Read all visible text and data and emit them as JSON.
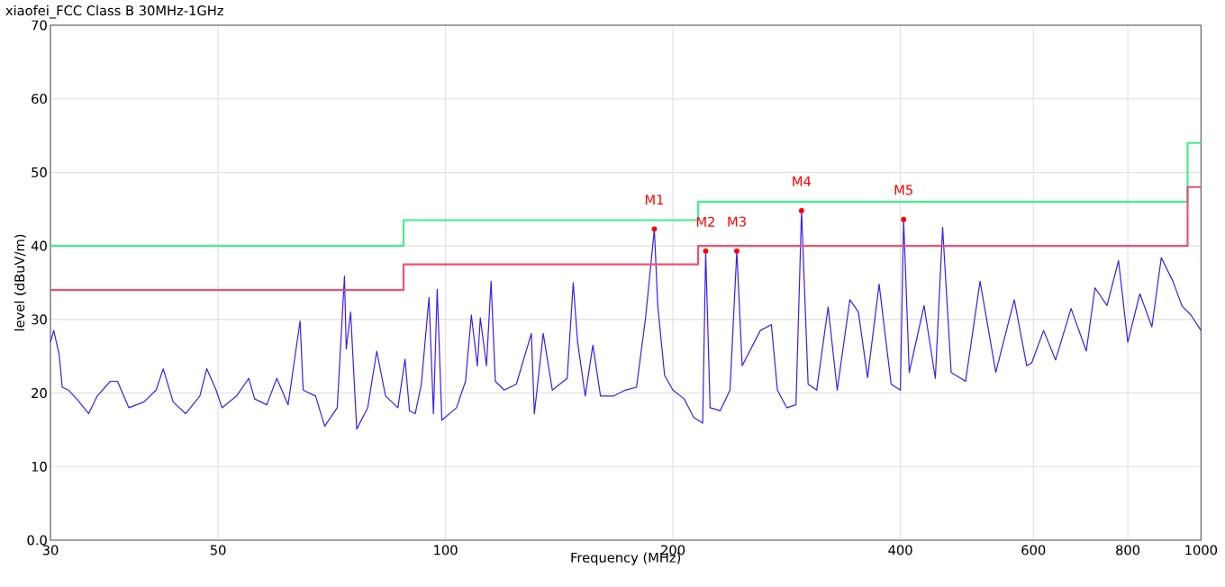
{
  "chart_data": {
    "type": "line",
    "title": "xiaofei_FCC Class B 30MHz-1GHz",
    "xlabel": "Frequency (MHz)",
    "ylabel": "level (dBuV/m)",
    "log": "x",
    "grid": true,
    "marker": "none",
    "line_style": "solid",
    "xlim": [
      30,
      1000
    ],
    "xticks": [
      30,
      50,
      100,
      200,
      400,
      600,
      800,
      1000
    ],
    "ylim": [
      0,
      70
    ],
    "yticks": [
      {
        "value": 0,
        "label": "0.0"
      },
      10,
      20,
      30,
      40,
      50,
      60,
      70
    ],
    "series": [
      {
        "color": "#3c1cf5",
        "x": [
          30,
          30.3,
          30.8,
          31.1,
          31.7,
          32.5,
          33.7,
          34.6,
          36,
          36.8,
          38.1,
          39.9,
          41.4,
          42.3,
          43.6,
          45.3,
          47.3,
          48.3,
          49.7,
          50.6,
          52.9,
          54.9,
          55.9,
          58,
          59.8,
          61.9,
          64.2,
          64.8,
          67.3,
          69.2,
          71.9,
          73.5,
          73.9,
          74.9,
          76.3,
          78.9,
          81.1,
          83.3,
          86.5,
          88.4,
          89.6,
          91.2,
          92.9,
          95.1,
          96.4,
          97.5,
          98.9,
          103.4,
          106.3,
          108.2,
          110.2,
          111.2,
          113.3,
          114.9,
          116.4,
          119.6,
          124.1,
          129.9,
          131.1,
          134.7,
          138.5,
          144.9,
          147.6,
          149.6,
          153.1,
          156.7,
          160.4,
          167,
          173,
          179,
          184,
          189,
          191,
          195,
          200,
          207,
          213,
          219,
          221,
          224,
          231,
          238,
          243,
          247,
          261,
          270,
          275,
          283,
          291,
          296,
          302,
          310,
          321,
          330,
          343,
          352,
          362,
          375,
          389,
          400,
          404,
          411,
          430,
          445,
          455,
          467,
          488,
          510,
          535,
          566,
          588,
          597,
          619,
          642,
          673,
          705,
          724,
          751,
          778,
          800,
          830,
          861,
          886,
          918,
          944,
          970,
          1000
        ],
        "values": [
          26.9,
          28.5,
          25.3,
          20.8,
          20.4,
          19.2,
          17.2,
          19.6,
          21.6,
          21.6,
          18,
          18.8,
          20.4,
          23.3,
          18.8,
          17.2,
          19.6,
          23.3,
          20.4,
          18,
          19.6,
          22,
          19.2,
          18.4,
          22,
          18.4,
          29.8,
          20.4,
          19.6,
          15.5,
          18,
          35.9,
          26,
          31,
          15.1,
          18,
          25.7,
          19.6,
          18,
          24.6,
          17.6,
          17.2,
          21.2,
          33,
          17.2,
          34.1,
          16.3,
          18,
          21.6,
          30.6,
          23.7,
          30.2,
          23.7,
          35.2,
          21.6,
          20.4,
          21.2,
          28.1,
          17.2,
          28.1,
          20.4,
          22,
          35,
          26.9,
          19.6,
          26.5,
          19.6,
          19.6,
          20.4,
          20.8,
          30.2,
          42.3,
          31.8,
          22.4,
          20.4,
          19.2,
          16.7,
          15.9,
          39.3,
          18,
          17.6,
          20.4,
          39.3,
          23.7,
          28.5,
          29.3,
          20.4,
          18,
          18.4,
          44.8,
          21.2,
          20.4,
          31.7,
          20.4,
          32.7,
          31,
          22.1,
          34.8,
          21.2,
          20.4,
          43.6,
          22.8,
          31.9,
          22,
          42.5,
          22.8,
          21.6,
          35.2,
          22.8,
          32.7,
          23.7,
          24.1,
          28.5,
          24.5,
          31.5,
          25.7,
          34.3,
          31.9,
          38,
          26.9,
          33.5,
          29,
          38.4,
          35.2,
          31.8,
          30.6,
          28.5
        ]
      },
      {
        "color": "#3cf08c",
        "x": [
          30,
          88,
          88,
          216,
          216,
          960,
          960,
          1000
        ],
        "values": [
          40,
          40,
          43.5,
          43.5,
          46,
          46,
          54,
          54
        ]
      },
      {
        "color": "#f0506e",
        "x": [
          30,
          88,
          88,
          216,
          216,
          960,
          960,
          1000
        ],
        "values": [
          34,
          34,
          37.5,
          37.5,
          40,
          40,
          48,
          48
        ]
      }
    ],
    "annotations": [
      {
        "text": "M1",
        "x": 189,
        "y": 42.3
      },
      {
        "text": "M2",
        "x": 221,
        "y": 39.3
      },
      {
        "text": "M3",
        "x": 243,
        "y": 39.3
      },
      {
        "text": "M4",
        "x": 296,
        "y": 44.8
      },
      {
        "text": "M5",
        "x": 404,
        "y": 43.6
      }
    ]
  }
}
